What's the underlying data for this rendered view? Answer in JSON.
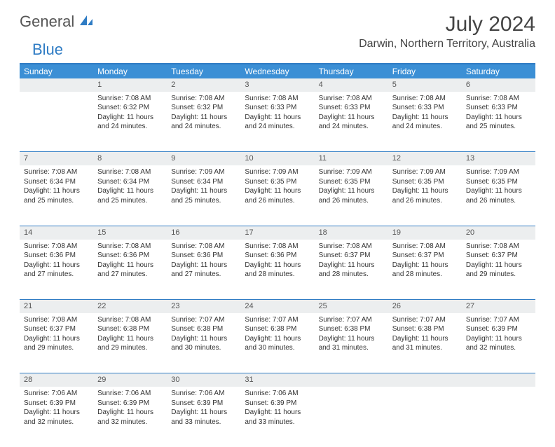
{
  "logo": {
    "part1": "General",
    "part2": "Blue"
  },
  "title": "July 2024",
  "location": "Darwin, Northern Territory, Australia",
  "colors": {
    "header_bg": "#3b8fd5",
    "accent_border": "#2f7cc4",
    "daynum_bg": "#eceeef",
    "text": "#333333"
  },
  "daysOfWeek": [
    "Sunday",
    "Monday",
    "Tuesday",
    "Wednesday",
    "Thursday",
    "Friday",
    "Saturday"
  ],
  "weeks": [
    [
      {
        "n": "",
        "sr": "",
        "ss": "",
        "dl": ""
      },
      {
        "n": "1",
        "sr": "7:08 AM",
        "ss": "6:32 PM",
        "dl": "11 hours and 24 minutes."
      },
      {
        "n": "2",
        "sr": "7:08 AM",
        "ss": "6:32 PM",
        "dl": "11 hours and 24 minutes."
      },
      {
        "n": "3",
        "sr": "7:08 AM",
        "ss": "6:33 PM",
        "dl": "11 hours and 24 minutes."
      },
      {
        "n": "4",
        "sr": "7:08 AM",
        "ss": "6:33 PM",
        "dl": "11 hours and 24 minutes."
      },
      {
        "n": "5",
        "sr": "7:08 AM",
        "ss": "6:33 PM",
        "dl": "11 hours and 24 minutes."
      },
      {
        "n": "6",
        "sr": "7:08 AM",
        "ss": "6:33 PM",
        "dl": "11 hours and 25 minutes."
      }
    ],
    [
      {
        "n": "7",
        "sr": "7:08 AM",
        "ss": "6:34 PM",
        "dl": "11 hours and 25 minutes."
      },
      {
        "n": "8",
        "sr": "7:08 AM",
        "ss": "6:34 PM",
        "dl": "11 hours and 25 minutes."
      },
      {
        "n": "9",
        "sr": "7:09 AM",
        "ss": "6:34 PM",
        "dl": "11 hours and 25 minutes."
      },
      {
        "n": "10",
        "sr": "7:09 AM",
        "ss": "6:35 PM",
        "dl": "11 hours and 26 minutes."
      },
      {
        "n": "11",
        "sr": "7:09 AM",
        "ss": "6:35 PM",
        "dl": "11 hours and 26 minutes."
      },
      {
        "n": "12",
        "sr": "7:09 AM",
        "ss": "6:35 PM",
        "dl": "11 hours and 26 minutes."
      },
      {
        "n": "13",
        "sr": "7:09 AM",
        "ss": "6:35 PM",
        "dl": "11 hours and 26 minutes."
      }
    ],
    [
      {
        "n": "14",
        "sr": "7:08 AM",
        "ss": "6:36 PM",
        "dl": "11 hours and 27 minutes."
      },
      {
        "n": "15",
        "sr": "7:08 AM",
        "ss": "6:36 PM",
        "dl": "11 hours and 27 minutes."
      },
      {
        "n": "16",
        "sr": "7:08 AM",
        "ss": "6:36 PM",
        "dl": "11 hours and 27 minutes."
      },
      {
        "n": "17",
        "sr": "7:08 AM",
        "ss": "6:36 PM",
        "dl": "11 hours and 28 minutes."
      },
      {
        "n": "18",
        "sr": "7:08 AM",
        "ss": "6:37 PM",
        "dl": "11 hours and 28 minutes."
      },
      {
        "n": "19",
        "sr": "7:08 AM",
        "ss": "6:37 PM",
        "dl": "11 hours and 28 minutes."
      },
      {
        "n": "20",
        "sr": "7:08 AM",
        "ss": "6:37 PM",
        "dl": "11 hours and 29 minutes."
      }
    ],
    [
      {
        "n": "21",
        "sr": "7:08 AM",
        "ss": "6:37 PM",
        "dl": "11 hours and 29 minutes."
      },
      {
        "n": "22",
        "sr": "7:08 AM",
        "ss": "6:38 PM",
        "dl": "11 hours and 29 minutes."
      },
      {
        "n": "23",
        "sr": "7:07 AM",
        "ss": "6:38 PM",
        "dl": "11 hours and 30 minutes."
      },
      {
        "n": "24",
        "sr": "7:07 AM",
        "ss": "6:38 PM",
        "dl": "11 hours and 30 minutes."
      },
      {
        "n": "25",
        "sr": "7:07 AM",
        "ss": "6:38 PM",
        "dl": "11 hours and 31 minutes."
      },
      {
        "n": "26",
        "sr": "7:07 AM",
        "ss": "6:38 PM",
        "dl": "11 hours and 31 minutes."
      },
      {
        "n": "27",
        "sr": "7:07 AM",
        "ss": "6:39 PM",
        "dl": "11 hours and 32 minutes."
      }
    ],
    [
      {
        "n": "28",
        "sr": "7:06 AM",
        "ss": "6:39 PM",
        "dl": "11 hours and 32 minutes."
      },
      {
        "n": "29",
        "sr": "7:06 AM",
        "ss": "6:39 PM",
        "dl": "11 hours and 32 minutes."
      },
      {
        "n": "30",
        "sr": "7:06 AM",
        "ss": "6:39 PM",
        "dl": "11 hours and 33 minutes."
      },
      {
        "n": "31",
        "sr": "7:06 AM",
        "ss": "6:39 PM",
        "dl": "11 hours and 33 minutes."
      },
      {
        "n": "",
        "sr": "",
        "ss": "",
        "dl": ""
      },
      {
        "n": "",
        "sr": "",
        "ss": "",
        "dl": ""
      },
      {
        "n": "",
        "sr": "",
        "ss": "",
        "dl": ""
      }
    ]
  ],
  "labels": {
    "sunrise": "Sunrise: ",
    "sunset": "Sunset: ",
    "daylight": "Daylight: "
  }
}
